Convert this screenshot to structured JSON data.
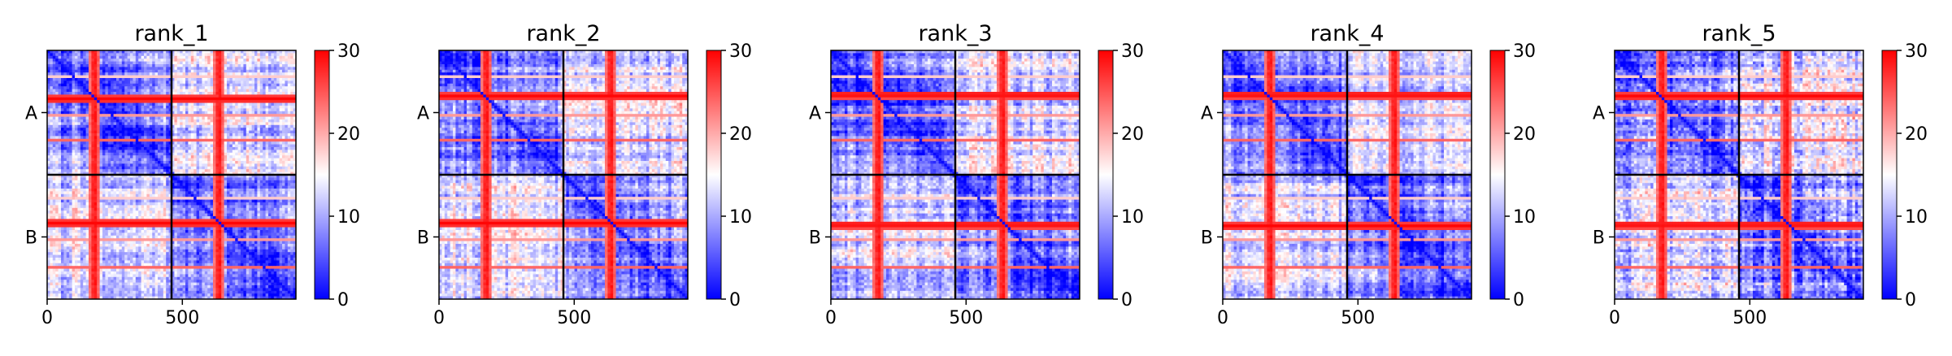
{
  "chart_data": [
    {
      "type": "heatmap",
      "title": "rank_1",
      "xticks": [
        "0",
        "500"
      ],
      "xtick_values": [
        0,
        500
      ],
      "yticks": [
        "A",
        "B"
      ],
      "xlim": [
        0,
        920
      ],
      "chain_boundary": 460,
      "colorbar": {
        "min": 0,
        "max": 30,
        "ticks": [
          "0",
          "10",
          "20",
          "30"
        ],
        "colormap": "bwr"
      },
      "hot_stripes_residue": [
        175,
        635
      ],
      "hot_bands_residue": [
        180,
        640
      ],
      "speckle": 0.15
    },
    {
      "type": "heatmap",
      "title": "rank_2",
      "xticks": [
        "0",
        "500"
      ],
      "xtick_values": [
        0,
        500
      ],
      "yticks": [
        "A",
        "B"
      ],
      "xlim": [
        0,
        920
      ],
      "chain_boundary": 460,
      "colorbar": {
        "min": 0,
        "max": 30,
        "ticks": [
          "0",
          "10",
          "20",
          "30"
        ],
        "colormap": "bwr"
      },
      "hot_stripes_residue": [
        175,
        635
      ],
      "hot_bands_residue": [
        170,
        640
      ],
      "speckle": 0.15
    },
    {
      "type": "heatmap",
      "title": "rank_3",
      "xticks": [
        "0",
        "500"
      ],
      "xtick_values": [
        0,
        500
      ],
      "yticks": [
        "A",
        "B"
      ],
      "xlim": [
        0,
        920
      ],
      "chain_boundary": 460,
      "colorbar": {
        "min": 0,
        "max": 30,
        "ticks": [
          "0",
          "10",
          "20",
          "30"
        ],
        "colormap": "bwr"
      },
      "hot_stripes_residue": [
        175,
        635
      ],
      "hot_bands_residue": [
        165,
        645
      ],
      "speckle": 0.15
    },
    {
      "type": "heatmap",
      "title": "rank_4",
      "xticks": [
        "0",
        "500"
      ],
      "xtick_values": [
        0,
        500
      ],
      "yticks": [
        "A",
        "B"
      ],
      "xlim": [
        0,
        920
      ],
      "chain_boundary": 460,
      "colorbar": {
        "min": 0,
        "max": 30,
        "ticks": [
          "0",
          "10",
          "20",
          "30"
        ],
        "colormap": "bwr"
      },
      "hot_stripes_residue": [
        175,
        635
      ],
      "hot_bands_residue": [
        165,
        650
      ],
      "speckle": 0.15
    },
    {
      "type": "heatmap",
      "title": "rank_5",
      "xticks": [
        "0",
        "500"
      ],
      "xtick_values": [
        0,
        500
      ],
      "yticks": [
        "A",
        "B"
      ],
      "xlim": [
        0,
        920
      ],
      "chain_boundary": 460,
      "colorbar": {
        "min": 0,
        "max": 30,
        "ticks": [
          "0",
          "10",
          "20",
          "30"
        ],
        "colormap": "bwr"
      },
      "hot_stripes_residue": [
        175,
        635
      ],
      "hot_bands_residue": [
        170,
        645
      ],
      "speckle": 0.3
    }
  ]
}
